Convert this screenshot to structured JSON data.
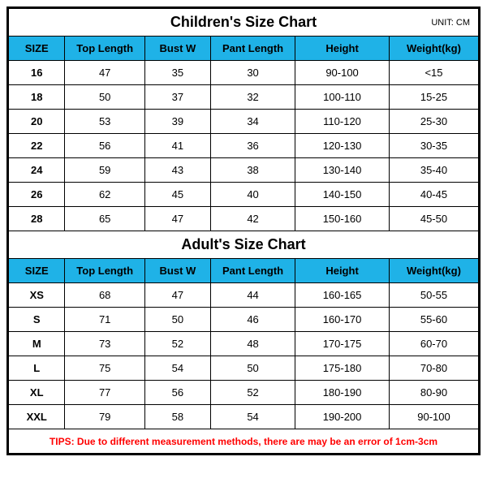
{
  "colors": {
    "header_bg": "#1fb2e7",
    "border": "#000000",
    "background": "#ffffff",
    "tips_color": "#ff0000",
    "text": "#000000"
  },
  "children_chart": {
    "title": "Children's Size Chart",
    "unit_label": "UNIT: CM",
    "columns": [
      "SIZE",
      "Top Length",
      "Bust W",
      "Pant Length",
      "Height",
      "Weight(kg)"
    ],
    "col_widths_pct": [
      12,
      17,
      14,
      18,
      20,
      19
    ],
    "rows": [
      [
        "16",
        "47",
        "35",
        "30",
        "90-100",
        "<15"
      ],
      [
        "18",
        "50",
        "37",
        "32",
        "100-110",
        "15-25"
      ],
      [
        "20",
        "53",
        "39",
        "34",
        "110-120",
        "25-30"
      ],
      [
        "22",
        "56",
        "41",
        "36",
        "120-130",
        "30-35"
      ],
      [
        "24",
        "59",
        "43",
        "38",
        "130-140",
        "35-40"
      ],
      [
        "26",
        "62",
        "45",
        "40",
        "140-150",
        "40-45"
      ],
      [
        "28",
        "65",
        "47",
        "42",
        "150-160",
        "45-50"
      ]
    ]
  },
  "adult_chart": {
    "title": "Adult's Size Chart",
    "columns": [
      "SIZE",
      "Top Length",
      "Bust W",
      "Pant Length",
      "Height",
      "Weight(kg)"
    ],
    "rows": [
      [
        "XS",
        "68",
        "47",
        "44",
        "160-165",
        "50-55"
      ],
      [
        "S",
        "71",
        "50",
        "46",
        "160-170",
        "55-60"
      ],
      [
        "M",
        "73",
        "52",
        "48",
        "170-175",
        "60-70"
      ],
      [
        "L",
        "75",
        "54",
        "50",
        "175-180",
        "70-80"
      ],
      [
        "XL",
        "77",
        "56",
        "52",
        "180-190",
        "80-90"
      ],
      [
        "XXL",
        "79",
        "58",
        "54",
        "190-200",
        "90-100"
      ]
    ]
  },
  "tips": "TIPS: Due to different measurement methods, there are may be an error of 1cm-3cm"
}
